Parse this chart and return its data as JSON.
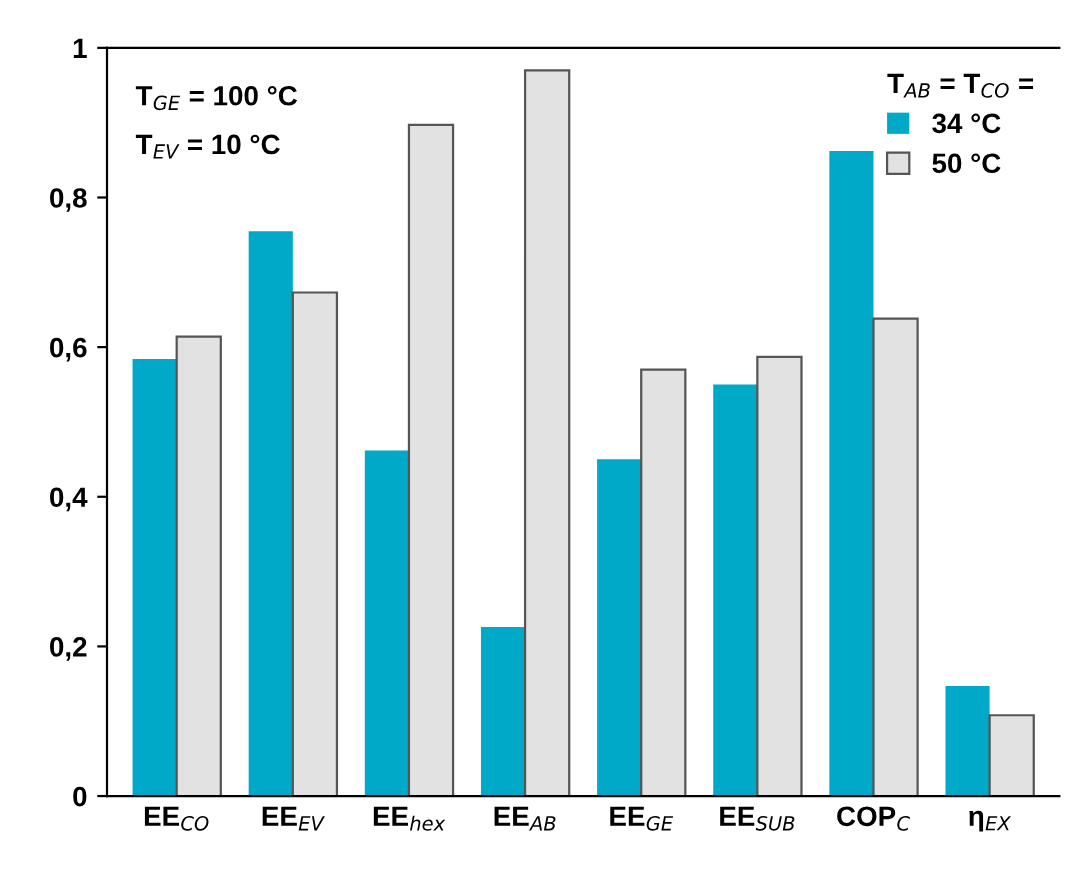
{
  "chart_data": {
    "type": "bar",
    "categories": [
      "EE$_{CO}$",
      "EE$_{EV}$",
      "EE$_{hex}$",
      "EE$_{AB}$",
      "EE$_{GE}$",
      "EE$_{SUB}$",
      "COP$_{C}$",
      "η$_{EX}$"
    ],
    "series": [
      {
        "name": "34 °C",
        "color": "#00a9c8",
        "values": [
          0.584,
          0.755,
          0.462,
          0.226,
          0.45,
          0.55,
          0.862,
          0.147
        ]
      },
      {
        "name": "50 °C",
        "color": "#e2e2e2",
        "values": [
          0.614,
          0.673,
          0.897,
          0.97,
          0.57,
          0.587,
          0.638,
          0.108
        ]
      }
    ],
    "legend_title": "T$_{AB}$ = T$_{CO}$ =",
    "annotations": [
      "T$_{GE}$ = 100 °C",
      "T$_{EV}$ = 10 °C"
    ],
    "ylim": [
      0,
      1
    ],
    "yticks": [
      0,
      {
        "value": 0.2,
        "label": "0,2"
      },
      {
        "value": 0.4,
        "label": "0,4"
      },
      {
        "value": 0.6,
        "label": "0,6"
      },
      {
        "value": 0.8,
        "label": "0,8"
      },
      1
    ],
    "grid": false,
    "legend": "top right"
  }
}
